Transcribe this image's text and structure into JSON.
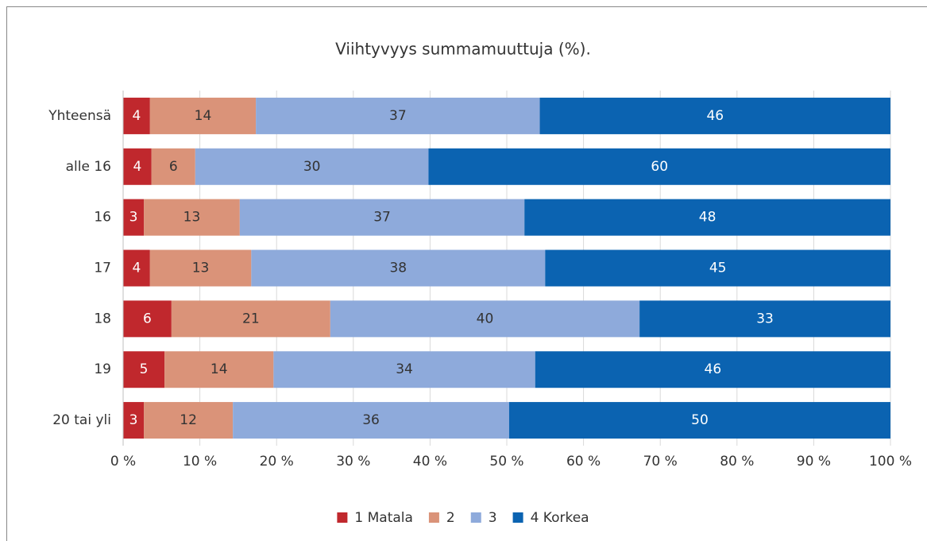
{
  "chart_data": {
    "type": "stacked-bar-horizontal",
    "title": "Viihtyvyys summamuuttuja (%).",
    "categories": [
      "Yhteensä",
      "alle 16",
      "16",
      "17",
      "18",
      "19",
      "20 tai yli"
    ],
    "series": [
      {
        "name": "1 Matala",
        "color": "#c0282d",
        "values": [
          3.5,
          3.7,
          2.7,
          3.5,
          6.3,
          5.4,
          2.7
        ],
        "value_labels": [
          "4",
          "4",
          "3",
          "4",
          "6",
          "5",
          "3"
        ]
      },
      {
        "name": "2",
        "color": "#da9379",
        "values": [
          13.8,
          5.7,
          12.5,
          13.2,
          20.7,
          14.2,
          11.6
        ],
        "value_labels": [
          "14",
          "6",
          "13",
          "13",
          "21",
          "14",
          "12"
        ]
      },
      {
        "name": "3",
        "color": "#8eaadb",
        "values": [
          37.0,
          30.4,
          37.1,
          38.3,
          40.3,
          34.1,
          36.0
        ],
        "value_labels": [
          "37",
          "30",
          "37",
          "38",
          "40",
          "34",
          "36"
        ]
      },
      {
        "name": "4 Korkea",
        "color": "#0b63b1",
        "values": [
          45.7,
          60.2,
          47.7,
          45.0,
          32.7,
          46.3,
          49.7
        ],
        "value_labels": [
          "46",
          "60",
          "48",
          "45",
          "33",
          "46",
          "50"
        ]
      }
    ],
    "xlim": [
      0,
      100
    ],
    "xticks": [
      {
        "value": 0,
        "label": "0 %"
      },
      {
        "value": 10,
        "label": "10 %"
      },
      {
        "value": 20,
        "label": "20 %"
      },
      {
        "value": 30,
        "label": "30 %"
      },
      {
        "value": 40,
        "label": "40 %"
      },
      {
        "value": 50,
        "label": "50 %"
      },
      {
        "value": 60,
        "label": "60 %"
      },
      {
        "value": 70,
        "label": "70 %"
      },
      {
        "value": 80,
        "label": "80 %"
      },
      {
        "value": 90,
        "label": "90 %"
      },
      {
        "value": 100,
        "label": "100 %"
      }
    ],
    "grid": true,
    "legend": "bottom"
  }
}
